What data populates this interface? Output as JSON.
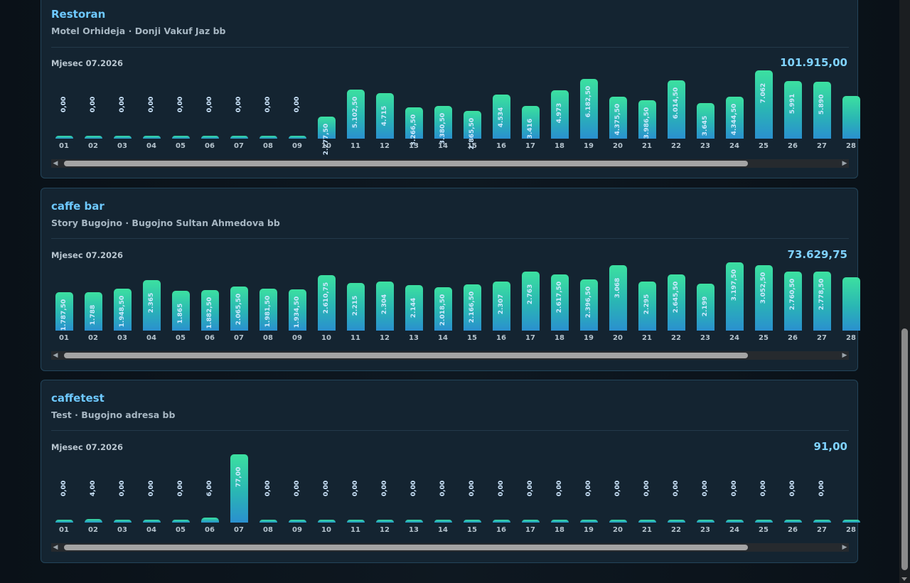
{
  "cards": [
    {
      "title": "Restoran",
      "subtitle": "Motel Orhideja · Donji Vakuf Jaz bb",
      "month_label": "Mjesec 07.2026",
      "total": "101.915,00"
    },
    {
      "title": "caffe bar",
      "subtitle": "Story Bugojno · Bugojno Sultan Ahmedova bb",
      "month_label": "Mjesec 07.2026",
      "total": "73.629,75"
    },
    {
      "title": "caffetest",
      "subtitle": "Test · Bugojno adresa bb",
      "month_label": "Mjesec 07.2026",
      "total": "91,00"
    }
  ],
  "chart_data": [
    {
      "type": "bar",
      "title": "Restoran",
      "x": [
        "01",
        "02",
        "03",
        "04",
        "05",
        "06",
        "07",
        "08",
        "09",
        "10",
        "11",
        "12",
        "13",
        "14",
        "15",
        "16",
        "17",
        "18",
        "19",
        "20",
        "21",
        "22",
        "23",
        "24",
        "25",
        "26",
        "27",
        "28"
      ],
      "values": [
        0,
        0,
        0,
        0,
        0,
        0,
        0,
        0,
        0,
        2277.5,
        5102.5,
        4715,
        3266.5,
        3380.5,
        2865.5,
        4534,
        3416,
        4973,
        6182.5,
        4375.5,
        3986.5,
        6014.5,
        3645,
        4344.5,
        7062,
        5991,
        5890,
        4450
      ],
      "labels": [
        "0,00",
        "0,00",
        "0,00",
        "0,00",
        "0,00",
        "0,00",
        "0,00",
        "0,00",
        "0,00",
        "2.277,50",
        "5.102,50",
        "4.715",
        "3.266,50",
        "3.380,50",
        "2.865,50",
        "4.534",
        "3.416",
        "4.973",
        "6.182,50",
        "4.375,50",
        "3.986,50",
        "6.014,50",
        "3.645",
        "4.344,50",
        "7.062",
        "5.991",
        "5.890",
        ""
      ],
      "ymax": 7062
    },
    {
      "type": "bar",
      "title": "caffe bar",
      "x": [
        "01",
        "02",
        "03",
        "04",
        "05",
        "06",
        "07",
        "08",
        "09",
        "10",
        "11",
        "12",
        "13",
        "14",
        "15",
        "16",
        "17",
        "18",
        "19",
        "20",
        "21",
        "22",
        "23",
        "24",
        "25",
        "26",
        "27",
        "28"
      ],
      "values": [
        1787.5,
        1788,
        1948.5,
        2365,
        1865,
        1882.5,
        2065.5,
        1981.5,
        1934.5,
        2610.75,
        2215,
        2304,
        2144,
        2018.5,
        2166.5,
        2307,
        2763,
        2617.5,
        2396.5,
        3068,
        2295,
        2645.5,
        2199,
        3197.5,
        3052.5,
        2760.5,
        2778.5,
        2500
      ],
      "labels": [
        "1.787,50",
        "1.788",
        "1.948,50",
        "2.365",
        "1.865",
        "1.882,50",
        "2.065,50",
        "1.981,50",
        "1.934,50",
        "2.610,75",
        "2.215",
        "2.304",
        "2.144",
        "2.018,50",
        "2.166,50",
        "2.307",
        "2.763",
        "2.617,50",
        "2.396,50",
        "3.068",
        "2.295",
        "2.645,50",
        "2.199",
        "3.197,50",
        "3.052,50",
        "2.760,50",
        "2.778,50",
        ""
      ],
      "ymax": 3197.5
    },
    {
      "type": "bar",
      "title": "caffetest",
      "x": [
        "01",
        "02",
        "03",
        "04",
        "05",
        "06",
        "07",
        "08",
        "09",
        "10",
        "11",
        "12",
        "13",
        "14",
        "15",
        "16",
        "17",
        "18",
        "19",
        "20",
        "21",
        "22",
        "23",
        "24",
        "25",
        "26",
        "27",
        "28"
      ],
      "values": [
        0,
        4,
        0,
        0,
        0,
        6,
        77,
        0,
        0,
        0,
        0,
        0,
        0,
        0,
        0,
        0,
        0,
        0,
        0,
        0,
        0,
        0,
        0,
        0,
        0,
        0,
        0,
        0
      ],
      "labels": [
        "0,00",
        "4,00",
        "0,00",
        "0,00",
        "0,00",
        "6,00",
        "77,00",
        "0,00",
        "0,00",
        "0,00",
        "0,00",
        "0,00",
        "0,00",
        "0,00",
        "0,00",
        "0,00",
        "0,00",
        "0,00",
        "0,00",
        "0,00",
        "0,00",
        "0,00",
        "0,00",
        "0,00",
        "0,00",
        "0,00",
        "0,00",
        ""
      ],
      "ymax": 77
    }
  ],
  "scroll_icons": {
    "left": "◀",
    "right": "▶"
  }
}
